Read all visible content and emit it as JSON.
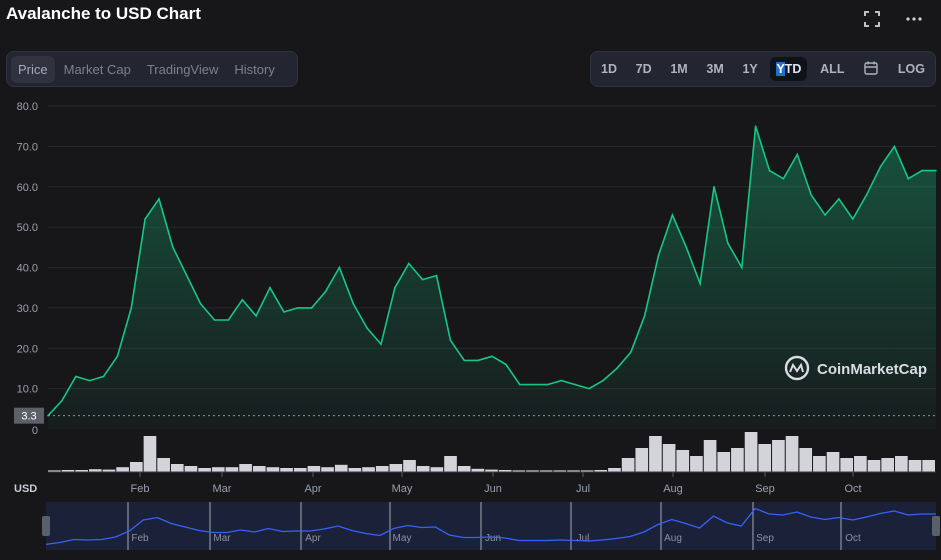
{
  "header": {
    "title": "Avalanche to USD Chart"
  },
  "tabs": [
    {
      "label": "Price",
      "active": true
    },
    {
      "label": "Market Cap",
      "active": false
    },
    {
      "label": "TradingView",
      "active": false
    },
    {
      "label": "History",
      "active": false
    }
  ],
  "ranges": [
    {
      "label": "1D"
    },
    {
      "label": "7D"
    },
    {
      "label": "1M"
    },
    {
      "label": "3M"
    },
    {
      "label": "1Y"
    },
    {
      "label": "YTD",
      "active": true
    },
    {
      "label": "ALL"
    },
    {
      "label": "",
      "icon": "calendar-icon"
    },
    {
      "label": "LOG"
    }
  ],
  "icons": {
    "fullscreen": "fullscreen-icon",
    "more": "more-icon"
  },
  "colors": {
    "line": "#16c784",
    "volume": "#e7e9ef",
    "navigator": "#3861fb",
    "background": "#17171a"
  },
  "chart_data": {
    "type": "area",
    "currency": "USD",
    "baseline_label": "3.3",
    "yticks": [
      "80.0",
      "70.0",
      "60.0",
      "50.0",
      "40.0",
      "30.0",
      "20.0",
      "10.0"
    ],
    "ylim": [
      0,
      80
    ],
    "volume_tick": "0",
    "months": [
      "Feb",
      "Mar",
      "Apr",
      "May",
      "Jun",
      "Jul",
      "Aug",
      "Sep",
      "Oct"
    ],
    "watermark": "CoinMarketCap",
    "x": [
      "Jan 1",
      "Jan 8",
      "Jan 15",
      "Jan 22",
      "Jan 29",
      "Feb 3",
      "Feb 6",
      "Feb 9",
      "Feb 11",
      "Feb 14",
      "Feb 18",
      "Feb 24",
      "Mar 1",
      "Mar 7",
      "Mar 12",
      "Mar 18",
      "Mar 24",
      "Mar 29",
      "Apr 3",
      "Apr 8",
      "Apr 12",
      "Apr 16",
      "Apr 20",
      "Apr 25",
      "Apr 30",
      "May 4",
      "May 9",
      "May 13",
      "May 18",
      "May 22",
      "May 25",
      "May 29",
      "Jun 3",
      "Jun 10",
      "Jun 17",
      "Jun 24",
      "Jul 1",
      "Jul 10",
      "Jul 20",
      "Jul 30",
      "Aug 5",
      "Aug 10",
      "Aug 14",
      "Aug 18",
      "Aug 21",
      "Aug 25",
      "Aug 29",
      "Sep 2",
      "Sep 5",
      "Sep 9",
      "Sep 12",
      "Sep 16",
      "Sep 20",
      "Sep 23",
      "Sep 27",
      "Oct 1",
      "Oct 5",
      "Oct 9",
      "Oct 13",
      "Oct 18",
      "Oct 22",
      "Oct 26",
      "Oct 28",
      "Oct 30",
      "Nov 1"
    ],
    "values": [
      3.3,
      7,
      13,
      12,
      13,
      18,
      30,
      52,
      57,
      45,
      38,
      31,
      27,
      27,
      32,
      28,
      35,
      29,
      30,
      30,
      34,
      40,
      31,
      25,
      21,
      35,
      41,
      37,
      38,
      22,
      17,
      17,
      18,
      16,
      11,
      11,
      11,
      12,
      11,
      10,
      12,
      15,
      19,
      28,
      43,
      53,
      45,
      36,
      60,
      46,
      40,
      75,
      64,
      62,
      68,
      58,
      53,
      57,
      52,
      58,
      65,
      70,
      62,
      64,
      64
    ],
    "volume": [
      0.04,
      0.05,
      0.05,
      0.07,
      0.06,
      0.12,
      0.25,
      0.9,
      0.35,
      0.2,
      0.15,
      0.1,
      0.12,
      0.12,
      0.2,
      0.15,
      0.12,
      0.1,
      0.1,
      0.15,
      0.12,
      0.18,
      0.1,
      0.12,
      0.15,
      0.2,
      0.3,
      0.15,
      0.12,
      0.4,
      0.15,
      0.08,
      0.06,
      0.05,
      0.04,
      0.04,
      0.04,
      0.04,
      0.04,
      0.04,
      0.05,
      0.1,
      0.35,
      0.6,
      0.9,
      0.7,
      0.55,
      0.4,
      0.8,
      0.5,
      0.6,
      1.0,
      0.7,
      0.8,
      0.9,
      0.6,
      0.4,
      0.5,
      0.35,
      0.4,
      0.3,
      0.35,
      0.4,
      0.3,
      0.3
    ]
  }
}
